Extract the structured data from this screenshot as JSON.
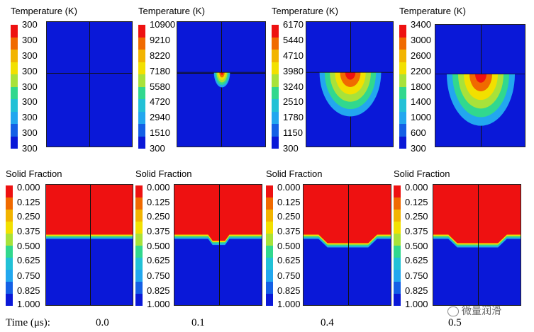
{
  "temperature_row": {
    "label": "Temperature (K)",
    "panels": [
      {
        "ticks": [
          "300",
          "300",
          "300",
          "300",
          "300",
          "300",
          "300",
          "300",
          "300"
        ],
        "melt_pool": {
          "width_fraction": 0,
          "depth_fraction": 0
        }
      },
      {
        "ticks": [
          "10900",
          "9210",
          "8220",
          "7180",
          "5580",
          "4720",
          "2940",
          "1510",
          "300"
        ],
        "melt_pool": {
          "width_fraction": 0.18,
          "depth_fraction": 0.12
        }
      },
      {
        "ticks": [
          "6170",
          "5440",
          "4710",
          "3980",
          "3240",
          "2510",
          "1780",
          "1150",
          "300"
        ],
        "melt_pool": {
          "width_fraction": 0.7,
          "depth_fraction": 0.35
        }
      },
      {
        "ticks": [
          "3400",
          "3000",
          "2600",
          "2200",
          "1800",
          "1400",
          "1000",
          "600",
          "300"
        ],
        "melt_pool": {
          "width_fraction": 0.75,
          "depth_fraction": 0.42
        }
      }
    ]
  },
  "solid_fraction_row": {
    "label": "Solid Fraction",
    "ticks": [
      "0.000",
      "0.125",
      "0.250",
      "0.375",
      "0.500",
      "0.625",
      "0.750",
      "0.825",
      "1.000"
    ],
    "panels": [
      {
        "dip_fraction": 0
      },
      {
        "dip_fraction": 0.05
      },
      {
        "dip_fraction": 0.07
      },
      {
        "dip_fraction": 0.07
      }
    ]
  },
  "time_axis": {
    "label": "Time (μs):",
    "values": [
      "0.0",
      "0.1",
      "0.4",
      "0.5"
    ]
  },
  "watermark": "微量润滑",
  "colors": {
    "field_blue": "#0a18d8",
    "melt_red": "#ee1111",
    "colormap": [
      "#ee1111",
      "#f06a00",
      "#f2b400",
      "#f2e000",
      "#a8e23a",
      "#31d88e",
      "#22c1d6",
      "#22a7ef",
      "#1460e6",
      "#0a18d8"
    ]
  }
}
